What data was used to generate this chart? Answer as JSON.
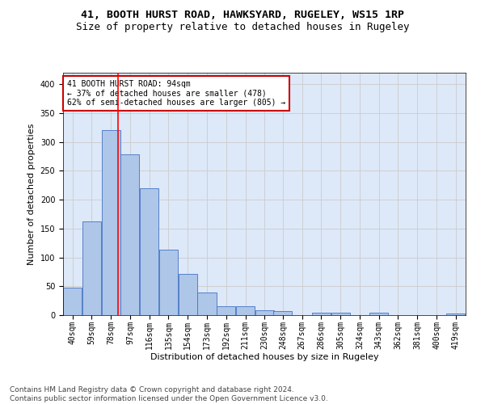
{
  "title1": "41, BOOTH HURST ROAD, HAWKSYARD, RUGELEY, WS15 1RP",
  "title2": "Size of property relative to detached houses in Rugeley",
  "xlabel": "Distribution of detached houses by size in Rugeley",
  "ylabel": "Number of detached properties",
  "footer1": "Contains HM Land Registry data © Crown copyright and database right 2024.",
  "footer2": "Contains public sector information licensed under the Open Government Licence v3.0.",
  "annotation_line1": "41 BOOTH HURST ROAD: 94sqm",
  "annotation_line2": "← 37% of detached houses are smaller (478)",
  "annotation_line3": "62% of semi-detached houses are larger (805) →",
  "property_size": 94,
  "bar_labels": [
    "40sqm",
    "59sqm",
    "78sqm",
    "97sqm",
    "116sqm",
    "135sqm",
    "154sqm",
    "173sqm",
    "192sqm",
    "211sqm",
    "230sqm",
    "248sqm",
    "267sqm",
    "286sqm",
    "305sqm",
    "324sqm",
    "343sqm",
    "362sqm",
    "381sqm",
    "400sqm",
    "419sqm"
  ],
  "bar_values": [
    47,
    163,
    320,
    278,
    220,
    113,
    72,
    39,
    15,
    15,
    9,
    7,
    0,
    4,
    4,
    0,
    4,
    0,
    0,
    0,
    3
  ],
  "bin_starts": [
    40,
    59,
    78,
    97,
    116,
    135,
    154,
    173,
    192,
    211,
    230,
    248,
    267,
    286,
    305,
    324,
    343,
    362,
    381,
    400,
    419
  ],
  "bar_color": "#aec6e8",
  "bar_edge_color": "#4472c4",
  "red_line_x": 94,
  "ylim": [
    0,
    420
  ],
  "yticks": [
    0,
    50,
    100,
    150,
    200,
    250,
    300,
    350,
    400
  ],
  "grid_color": "#cccccc",
  "bg_color": "#dde8f8",
  "annotation_box_color": "#ffffff",
  "annotation_box_edge": "#cc0000",
  "title1_fontsize": 9.5,
  "title2_fontsize": 9,
  "axis_label_fontsize": 8,
  "tick_fontsize": 7,
  "footer_fontsize": 6.5
}
